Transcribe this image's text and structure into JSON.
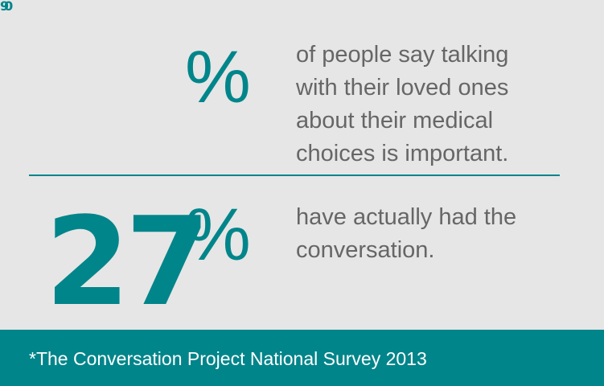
{
  "colors": {
    "background": "#e6e6e6",
    "accent": "#00858a",
    "body_text": "#666666",
    "footer_text": "#ffffff"
  },
  "stats": [
    {
      "number": "90",
      "percent_sign": "%",
      "lines": [
        "of people say talking",
        "with their loved ones",
        "about their medical",
        "choices is important."
      ]
    },
    {
      "number": "27",
      "percent_sign": "%",
      "lines": [
        "have actually had the",
        "conversation."
      ]
    }
  ],
  "footer": {
    "source": "*The Conversation Project National Survey 2013"
  }
}
